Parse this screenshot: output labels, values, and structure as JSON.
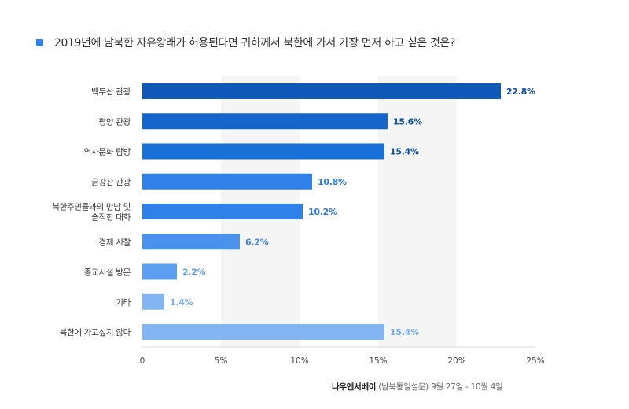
{
  "title": "2019년에 남북한 자유왕래가 허용된다면 귀하께서 북한에 가서 가장 먼저 하고 싶은 것은?",
  "footer": {
    "brand": "나우앤서베이",
    "source": "(남북통일설문) 9월 27일 - 10월 4일"
  },
  "chart_data": {
    "type": "bar",
    "orientation": "horizontal",
    "categories": [
      "백두산 관광",
      "평양 관광",
      "역사문화 탐방",
      "금강산 관광",
      "북한주민들과의 만남 및 솔직한 대화",
      "경제 시찰",
      "종교시설 방문",
      "기타",
      "북한에 가고싶지 않다"
    ],
    "category_lines": [
      [
        "백두산 관광"
      ],
      [
        "평양 관광"
      ],
      [
        "역사문화 탐방"
      ],
      [
        "금강산 관광"
      ],
      [
        "북한주민들과의 만남 및",
        "솔직한 대화"
      ],
      [
        "경제 시찰"
      ],
      [
        "종교시설 방문"
      ],
      [
        "기타"
      ],
      [
        "북한에 가고싶지 않다"
      ]
    ],
    "values": [
      22.8,
      15.6,
      15.4,
      10.8,
      10.2,
      6.2,
      2.2,
      1.4,
      15.4
    ],
    "value_labels": [
      "22.8%",
      "15.6%",
      "15.4%",
      "10.8%",
      "10.2%",
      "6.2%",
      "2.2%",
      "1.4%",
      "15.4%"
    ],
    "bar_colors": [
      "#1159b8",
      "#1566cc",
      "#1a70d9",
      "#2f80e8",
      "#2f80e8",
      "#4a92ec",
      "#5c9ef0",
      "#84b5f3",
      "#84b5f3"
    ],
    "label_colors": [
      "#0d4ea3",
      "#0d4ea3",
      "#0d4ea3",
      "#2f7ae0",
      "#2f7ae0",
      "#3d86e8",
      "#5c9ef0",
      "#7aaef2",
      "#7aaef2"
    ],
    "xticks": [
      0,
      5,
      10,
      15,
      20,
      25
    ],
    "xtick_labels": [
      "0",
      "5%",
      "10%",
      "15%",
      "20%",
      "25%"
    ],
    "xlim": [
      0,
      25
    ],
    "band_color": "#f5f5f5",
    "grid": true
  }
}
